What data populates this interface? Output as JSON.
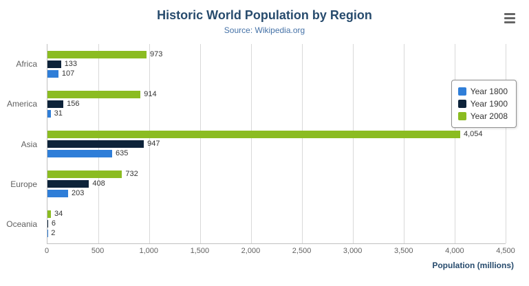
{
  "chart_data": {
    "type": "bar",
    "orientation": "horizontal",
    "title": "Historic World Population by Region",
    "subtitle": "Source: Wikipedia.org",
    "xlabel": "Population (millions)",
    "categories": [
      "Africa",
      "America",
      "Asia",
      "Europe",
      "Oceania"
    ],
    "series": [
      {
        "name": "Year 1800",
        "color": "#2f7ed8",
        "values": [
          107,
          31,
          635,
          203,
          2
        ]
      },
      {
        "name": "Year 1900",
        "color": "#0d233a",
        "values": [
          133,
          156,
          947,
          408,
          6
        ]
      },
      {
        "name": "Year 2008",
        "color": "#8bbc21",
        "values": [
          973,
          914,
          4054,
          732,
          34
        ]
      }
    ],
    "xlim": [
      0,
      4500
    ],
    "xticks": [
      0,
      500,
      1000,
      1500,
      2000,
      2500,
      3000,
      3500,
      4000,
      4500
    ],
    "grid": true,
    "legend_position": "right",
    "value_labels": true,
    "bar_display_order_top_to_bottom": [
      "Year 2008",
      "Year 1900",
      "Year 1800"
    ]
  }
}
